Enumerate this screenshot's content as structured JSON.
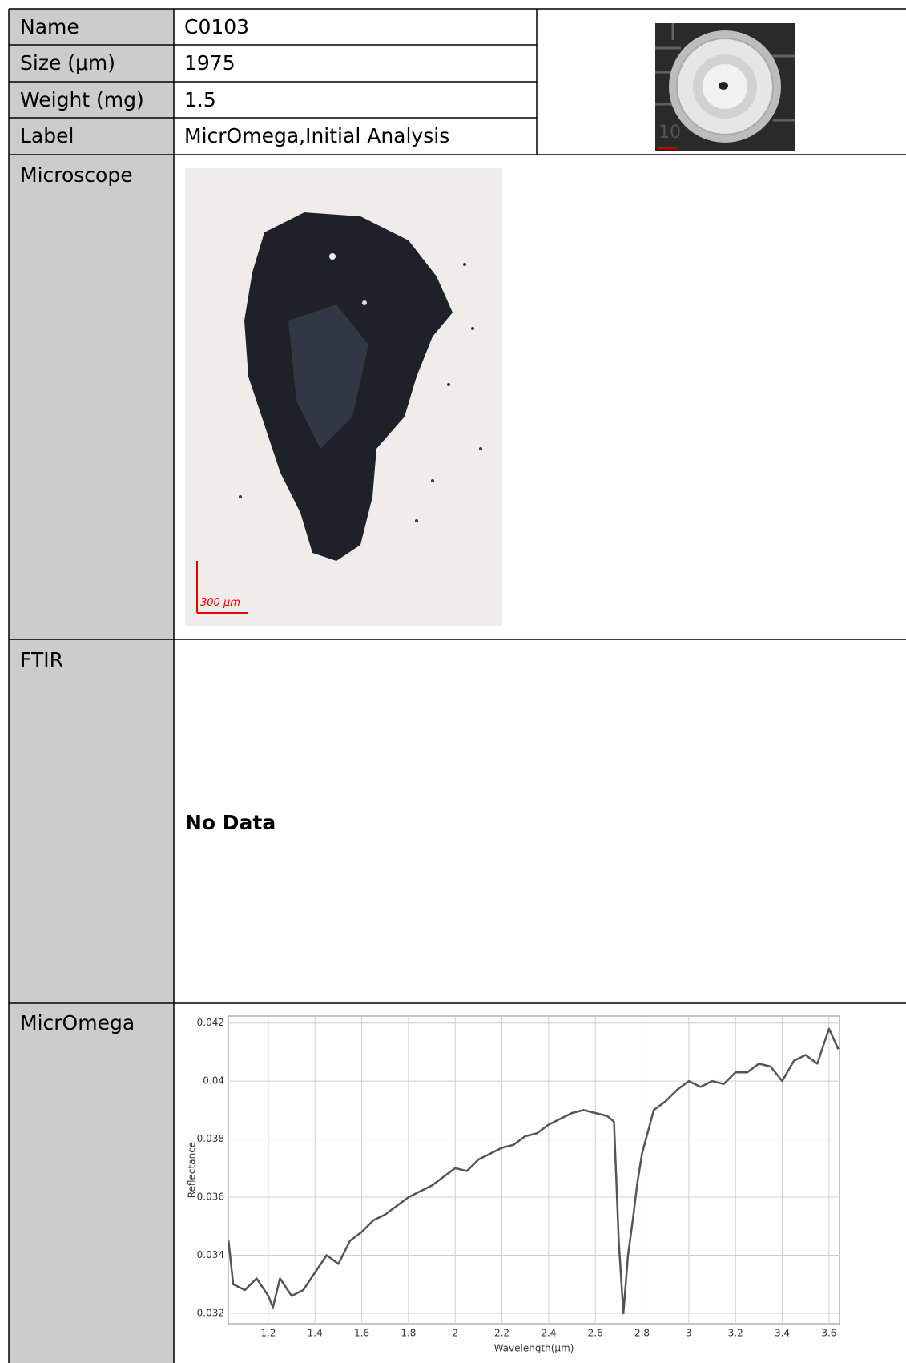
{
  "rows": [
    {
      "label": "Name",
      "value": "C0103"
    },
    {
      "label": "Size (μm)",
      "value": "1975"
    },
    {
      "label": "Weight (mg)",
      "value": "1.5"
    },
    {
      "label": "Label",
      "value": "MicrOmega,Initial Analysis"
    }
  ],
  "thumbnail": {
    "marker": "10"
  },
  "microscope": {
    "label": "Microscope",
    "scale_bar": "300 μm"
  },
  "ftir": {
    "label": "FTIR",
    "value": "No Data"
  },
  "micromega": {
    "label": "MicrOmega",
    "chart_data": {
      "type": "line",
      "x_label": "Wavelength(μm)",
      "y_label": "Reflectance",
      "color": "#555555",
      "grid": true,
      "xlim": [
        1.029,
        3.645
      ],
      "ylim": [
        0.03164,
        0.04224
      ],
      "xticks": [
        1.2,
        1.4,
        1.6,
        1.8,
        2,
        2.2,
        2.4,
        2.6,
        2.8,
        3,
        3.2,
        3.4,
        3.6
      ],
      "yticks": [
        0.032,
        0.034,
        0.036,
        0.038,
        0.04,
        0.042
      ],
      "x": [
        1.03,
        1.05,
        1.1,
        1.15,
        1.2,
        1.22,
        1.25,
        1.3,
        1.35,
        1.4,
        1.45,
        1.5,
        1.55,
        1.6,
        1.65,
        1.7,
        1.75,
        1.8,
        1.85,
        1.9,
        1.95,
        2,
        2.05,
        2.1,
        2.15,
        2.2,
        2.25,
        2.3,
        2.35,
        2.4,
        2.45,
        2.5,
        2.55,
        2.6,
        2.65,
        2.68,
        2.7,
        2.72,
        2.74,
        2.76,
        2.78,
        2.8,
        2.85,
        2.9,
        2.95,
        3,
        3.05,
        3.1,
        3.15,
        3.2,
        3.25,
        3.3,
        3.35,
        3.4,
        3.45,
        3.5,
        3.55,
        3.6,
        3.64
      ],
      "values": [
        0.0345,
        0.033,
        0.0328,
        0.0332,
        0.0326,
        0.0322,
        0.0332,
        0.0326,
        0.0328,
        0.0334,
        0.034,
        0.0337,
        0.0345,
        0.0348,
        0.0352,
        0.0354,
        0.0357,
        0.036,
        0.0362,
        0.0364,
        0.0367,
        0.037,
        0.0369,
        0.0373,
        0.0375,
        0.0377,
        0.0378,
        0.0381,
        0.0382,
        0.0385,
        0.0387,
        0.0389,
        0.039,
        0.0389,
        0.0388,
        0.0386,
        0.0345,
        0.032,
        0.034,
        0.0352,
        0.0365,
        0.0375,
        0.039,
        0.0393,
        0.0397,
        0.04,
        0.0398,
        0.04,
        0.0399,
        0.0403,
        0.0403,
        0.0406,
        0.0405,
        0.04,
        0.0407,
        0.0409,
        0.0406,
        0.0418,
        0.0411
      ]
    }
  }
}
